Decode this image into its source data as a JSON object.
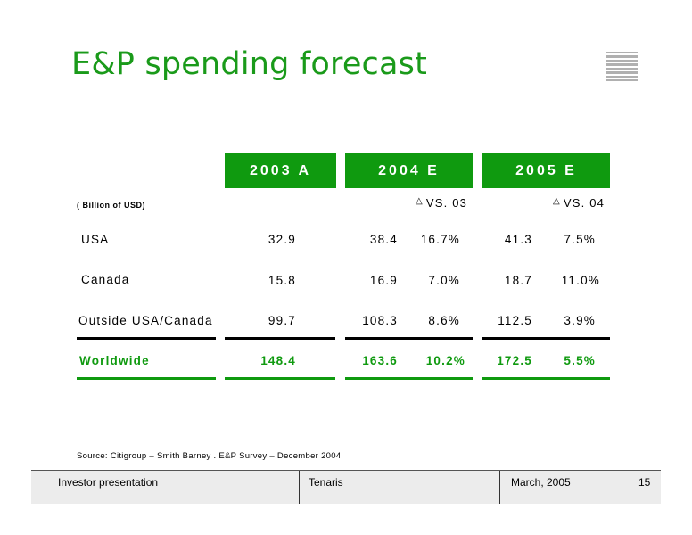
{
  "title": "E&P spending forecast",
  "unit_label": "( Billion of USD)",
  "headers": {
    "h2003": "2003 A",
    "h2004": "2004 E",
    "h2005": "2005 E"
  },
  "vs_labels": {
    "vs03": "VS. 03",
    "vs04": "VS. 04"
  },
  "rows": [
    {
      "label": "USA",
      "v2003": "32.9",
      "v2004": "38.4",
      "c2004": "16.7%",
      "v2005": "41.3",
      "c2005": "7.5%"
    },
    {
      "label": "Canada",
      "v2003": "15.8",
      "v2004": "16.9",
      "c2004": "7.0%",
      "v2005": "18.7",
      "c2005": "11.0%"
    },
    {
      "label": "Outside USA/Canada",
      "v2003": "99.7",
      "v2004": "108.3",
      "c2004": "8.6%",
      "v2005": "112.5",
      "c2005": "3.9%"
    }
  ],
  "total": {
    "label": "Worldwide",
    "v2003": "148.4",
    "v2004": "163.6",
    "c2004": "10.2%",
    "v2005": "172.5",
    "c2005": "5.5%"
  },
  "source": "Source: Citigroup – Smith Barney . E&P Survey – December 2004",
  "footer": {
    "left": "Investor presentation",
    "center": "Tenaris",
    "date": "March, 2005",
    "page": "15"
  },
  "colors": {
    "brand_green": "#0f9a0f",
    "title_green": "#1a9a1a"
  }
}
